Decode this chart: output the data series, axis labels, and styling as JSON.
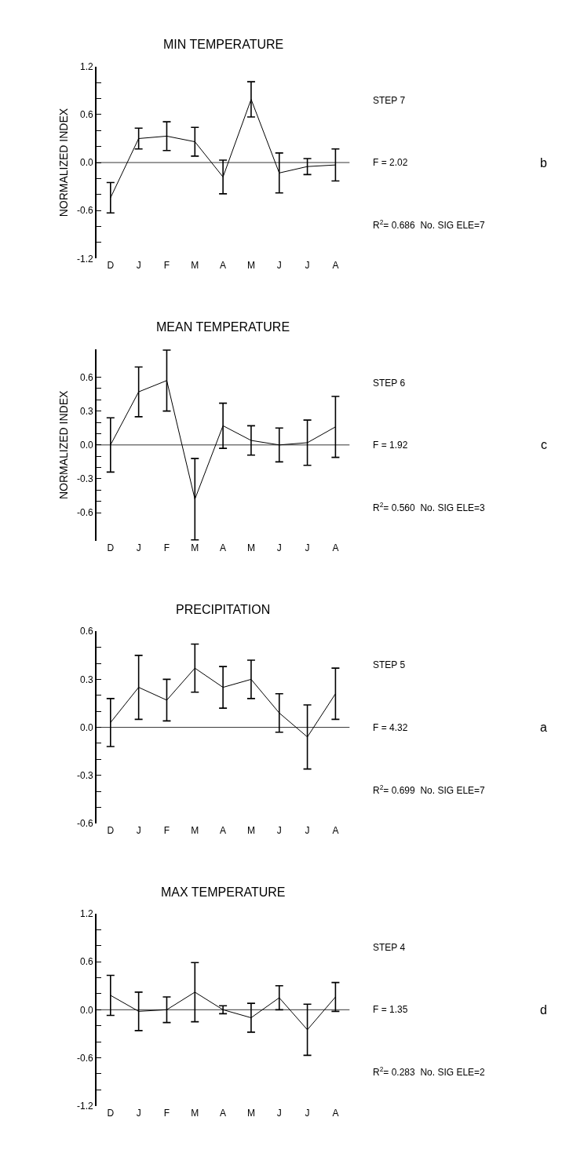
{
  "chart_data": [
    {
      "type": "line",
      "title": "MIN TEMPERATURE",
      "ylabel": "NORMALIZED INDEX",
      "categories": [
        "D",
        "J",
        "F",
        "M",
        "A",
        "M",
        "J",
        "J",
        "A"
      ],
      "series": [
        {
          "color": "#000000",
          "values": [
            -0.44,
            0.3,
            0.33,
            0.26,
            -0.18,
            0.79,
            -0.13,
            -0.05,
            -0.03
          ],
          "errors": [
            0.19,
            0.13,
            0.18,
            0.18,
            0.21,
            0.22,
            0.25,
            0.1,
            0.2
          ]
        }
      ],
      "ylim": [
        -1.2,
        1.2
      ],
      "yticks": [
        -1.2,
        {
          "value": -1.0,
          "label": null
        },
        {
          "value": -0.8,
          "label": null
        },
        -0.6,
        {
          "value": -0.4,
          "label": null
        },
        {
          "value": -0.2,
          "label": null
        },
        {
          "value": 0,
          "label": "0.0"
        },
        {
          "value": 0.2,
          "label": null
        },
        {
          "value": 0.4,
          "label": null
        },
        0.6,
        {
          "value": 0.8,
          "label": null
        },
        {
          "value": 1.0,
          "label": null
        },
        1.2
      ],
      "ref_lines": [
        {
          "axis": "y",
          "value": 0,
          "color": "#000000"
        }
      ],
      "marker": "none",
      "line_style": "solid",
      "annotations": [
        "STEP 7",
        "F = 2.02",
        "R$^{2}$= 0.686  No. SIG ELE=7",
        "b"
      ]
    },
    {
      "type": "line",
      "title": "MEAN TEMPERATURE",
      "ylabel": "NORMALIZED INDEX",
      "categories": [
        "D",
        "J",
        "F",
        "M",
        "A",
        "M",
        "J",
        "J",
        "A"
      ],
      "series": [
        {
          "color": "#000000",
          "values": [
            0.0,
            0.47,
            0.57,
            -0.48,
            0.17,
            0.04,
            0.0,
            0.02,
            0.16
          ],
          "errors": [
            0.24,
            0.22,
            0.27,
            0.36,
            0.2,
            0.13,
            0.15,
            0.2,
            0.27
          ]
        }
      ],
      "ylim": [
        -0.85,
        0.85
      ],
      "yticks": [
        -0.6,
        {
          "value": -0.5,
          "label": null
        },
        {
          "value": -0.4,
          "label": null
        },
        -0.3,
        {
          "value": -0.2,
          "label": null
        },
        {
          "value": -0.1,
          "label": null
        },
        {
          "value": 0,
          "label": "0.0"
        },
        {
          "value": 0.1,
          "label": null
        },
        {
          "value": 0.2,
          "label": null
        },
        0.3,
        {
          "value": 0.4,
          "label": null
        },
        {
          "value": 0.5,
          "label": null
        },
        0.6
      ],
      "ref_lines": [
        {
          "axis": "y",
          "value": 0,
          "color": "#000000"
        }
      ],
      "marker": "none",
      "line_style": "solid",
      "annotations": [
        "STEP 6",
        "F = 1.92",
        "R$^{2}$= 0.560  No. SIG ELE=3",
        "c"
      ]
    },
    {
      "type": "line",
      "title": "PRECIPITATION",
      "categories": [
        "D",
        "J",
        "F",
        "M",
        "A",
        "M",
        "J",
        "J",
        "A"
      ],
      "series": [
        {
          "color": "#000000",
          "values": [
            0.03,
            0.25,
            0.17,
            0.37,
            0.25,
            0.3,
            0.09,
            -0.06,
            0.21
          ],
          "errors": [
            0.15,
            0.2,
            0.13,
            0.15,
            0.13,
            0.12,
            0.12,
            0.2,
            0.16
          ]
        }
      ],
      "ylim": [
        -0.6,
        0.6
      ],
      "yticks": [
        -0.6,
        {
          "value": -0.5,
          "label": null
        },
        {
          "value": -0.4,
          "label": null
        },
        -0.3,
        {
          "value": -0.2,
          "label": null
        },
        {
          "value": -0.1,
          "label": null
        },
        {
          "value": 0,
          "label": "0.0"
        },
        {
          "value": 0.1,
          "label": null
        },
        {
          "value": 0.2,
          "label": null
        },
        0.3,
        {
          "value": 0.4,
          "label": null
        },
        {
          "value": 0.5,
          "label": null
        },
        0.6
      ],
      "ref_lines": [
        {
          "axis": "y",
          "value": 0,
          "color": "#000000"
        }
      ],
      "marker": "none",
      "line_style": "solid",
      "annotations": [
        "STEP 5",
        "F = 4.32",
        "R$^{2}$= 0.699  No. SIG ELE=7",
        "a"
      ]
    },
    {
      "type": "line",
      "title": "MAX TEMPERATURE",
      "categories": [
        "D",
        "J",
        "F",
        "M",
        "A",
        "M",
        "J",
        "J",
        "A"
      ],
      "series": [
        {
          "color": "#000000",
          "values": [
            0.18,
            -0.02,
            0.0,
            0.22,
            0.0,
            -0.1,
            0.15,
            -0.25,
            0.16
          ],
          "errors": [
            0.25,
            0.24,
            0.16,
            0.37,
            0.05,
            0.18,
            0.15,
            0.32,
            0.18
          ]
        }
      ],
      "ylim": [
        -1.2,
        1.2
      ],
      "yticks": [
        -1.2,
        {
          "value": -1.0,
          "label": null
        },
        {
          "value": -0.8,
          "label": null
        },
        -0.6,
        {
          "value": -0.4,
          "label": null
        },
        {
          "value": -0.2,
          "label": null
        },
        {
          "value": 0,
          "label": "0.0"
        },
        {
          "value": 0.2,
          "label": null
        },
        {
          "value": 0.4,
          "label": null
        },
        0.6,
        {
          "value": 0.8,
          "label": null
        },
        {
          "value": 1.0,
          "label": null
        },
        1.2
      ],
      "ref_lines": [
        {
          "axis": "y",
          "value": 0,
          "color": "#000000"
        }
      ],
      "marker": "none",
      "line_style": "solid",
      "annotations": [
        "STEP 4",
        "F = 1.35",
        "R$^{2}$= 0.283  No. SIG ELE=2",
        "d"
      ]
    }
  ]
}
